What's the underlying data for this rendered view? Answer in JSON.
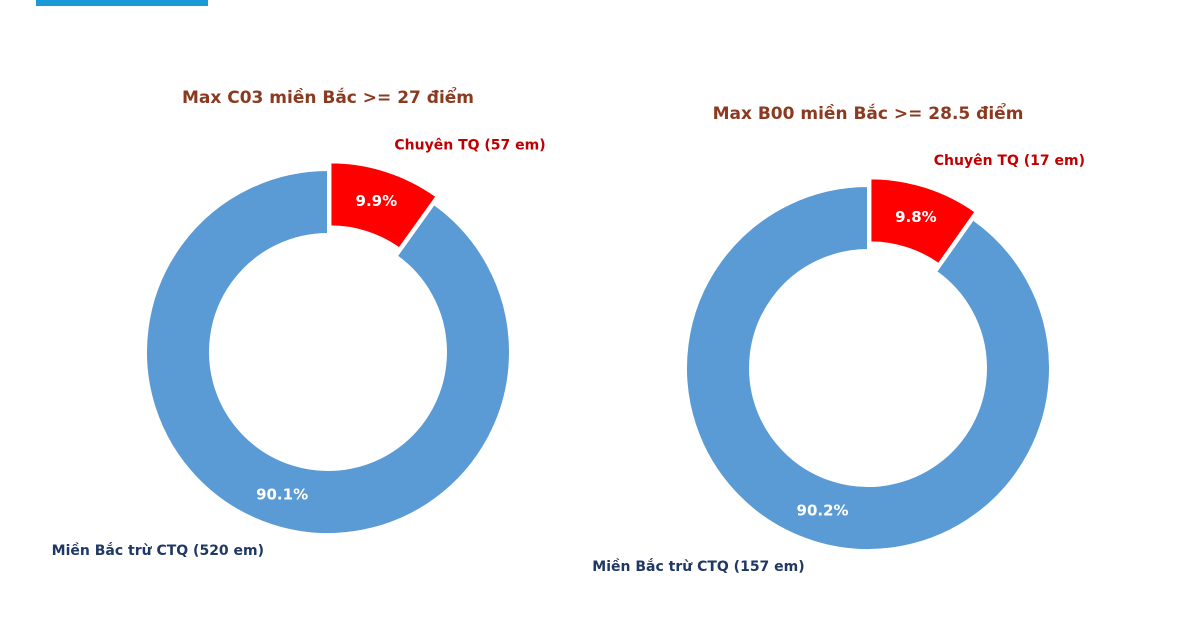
{
  "chart_data": [
    {
      "type": "donut",
      "title": "Max C03 miền Bắc >= 27 điểm",
      "categories": [
        "Chuyên TQ (57 em)",
        "Miền Bắc trừ CTQ (520 em)"
      ],
      "values": [
        9.9,
        90.1
      ],
      "value_labels": [
        "9.9%",
        "90.1%"
      ],
      "colors": [
        "#ff0000",
        "#5b9bd5"
      ],
      "label_colors": [
        "#c00000",
        "#1f3864"
      ]
    },
    {
      "type": "donut",
      "title": "Max B00 miền Bắc >= 28.5 điểm",
      "categories": [
        "Chuyên TQ (17 em)",
        "Miền Bắc trừ CTQ (157 em)"
      ],
      "values": [
        9.8,
        90.2
      ],
      "value_labels": [
        "9.8%",
        "90.2%"
      ],
      "colors": [
        "#ff0000",
        "#5b9bd5"
      ],
      "label_colors": [
        "#c00000",
        "#1f3864"
      ]
    }
  ]
}
